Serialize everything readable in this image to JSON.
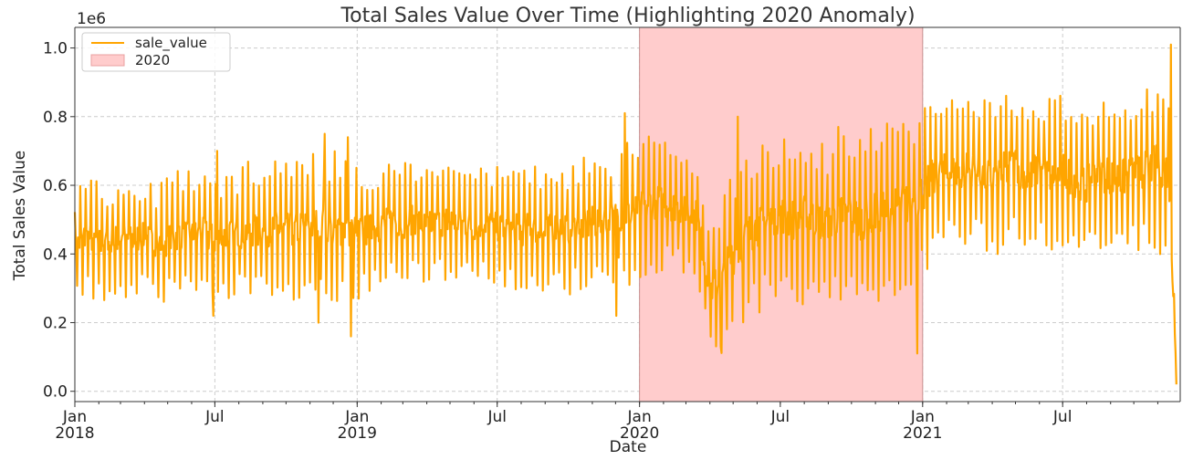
{
  "chart_data": {
    "type": "line",
    "title": "Total Sales Value Over Time (Highlighting 2020 Anomaly)",
    "xlabel": "Date",
    "ylabel": "Total Sales Value",
    "y_offset_text": "1e6",
    "ylim": [
      -0.03,
      1.06
    ],
    "yticks": [
      "0.0",
      "0.2",
      "0.4",
      "0.6",
      "0.8",
      "1.0"
    ],
    "xticks": [
      {
        "date": "2018-01-01",
        "line1": "Jan",
        "line2": "2018"
      },
      {
        "date": "2018-07-01",
        "line1": "Jul",
        "line2": ""
      },
      {
        "date": "2019-01-01",
        "line1": "Jan",
        "line2": "2019"
      },
      {
        "date": "2019-07-01",
        "line1": "Jul",
        "line2": ""
      },
      {
        "date": "2020-01-01",
        "line1": "Jan",
        "line2": "2020"
      },
      {
        "date": "2020-07-01",
        "line1": "Jul",
        "line2": ""
      },
      {
        "date": "2021-01-01",
        "line1": "Jan",
        "line2": "2021"
      },
      {
        "date": "2021-07-01",
        "line1": "Jul",
        "line2": ""
      }
    ],
    "xlim": [
      "2018-01-01",
      "2021-11-30"
    ],
    "grid": true,
    "legend_placement": "upper-left",
    "series": [
      {
        "name": "sale_value",
        "color": "#ffa500",
        "x": [
          "2018-01-01",
          "2018-01-15",
          "2018-02-01",
          "2018-02-15",
          "2018-03-01",
          "2018-03-15",
          "2018-04-01",
          "2018-04-15",
          "2018-05-01",
          "2018-05-15",
          "2018-06-01",
          "2018-06-15",
          "2018-07-01",
          "2018-07-15",
          "2018-08-01",
          "2018-08-15",
          "2018-09-01",
          "2018-09-15",
          "2018-10-01",
          "2018-10-15",
          "2018-11-01",
          "2018-11-15",
          "2018-12-01",
          "2018-12-15",
          "2019-01-01",
          "2019-01-15",
          "2019-02-01",
          "2019-02-15",
          "2019-03-01",
          "2019-03-15",
          "2019-04-01",
          "2019-04-15",
          "2019-05-01",
          "2019-05-15",
          "2019-06-01",
          "2019-06-15",
          "2019-07-01",
          "2019-07-15",
          "2019-08-01",
          "2019-08-15",
          "2019-09-01",
          "2019-09-15",
          "2019-10-01",
          "2019-10-15",
          "2019-11-01",
          "2019-11-15",
          "2019-12-01",
          "2019-12-15",
          "2020-01-01",
          "2020-01-15",
          "2020-02-01",
          "2020-02-15",
          "2020-03-01",
          "2020-03-15",
          "2020-04-01",
          "2020-04-15",
          "2020-05-01",
          "2020-05-15",
          "2020-06-01",
          "2020-06-15",
          "2020-07-01",
          "2020-07-15",
          "2020-08-01",
          "2020-08-15",
          "2020-09-01",
          "2020-09-15",
          "2020-10-01",
          "2020-10-15",
          "2020-11-01",
          "2020-11-15",
          "2020-12-01",
          "2020-12-15",
          "2021-01-01",
          "2021-01-15",
          "2021-02-01",
          "2021-02-15",
          "2021-03-01",
          "2021-03-15",
          "2021-04-01",
          "2021-04-15",
          "2021-05-01",
          "2021-05-15",
          "2021-06-01",
          "2021-06-15",
          "2021-07-01",
          "2021-07-15",
          "2021-08-01",
          "2021-08-15",
          "2021-09-01",
          "2021-09-15",
          "2021-10-01",
          "2021-10-15",
          "2021-11-01",
          "2021-11-15",
          "2021-11-25"
        ],
        "y": [
          0.42,
          0.45,
          0.44,
          0.43,
          0.45,
          0.44,
          0.45,
          0.43,
          0.44,
          0.46,
          0.45,
          0.46,
          0.44,
          0.45,
          0.46,
          0.47,
          0.46,
          0.48,
          0.47,
          0.47,
          0.48,
          0.49,
          0.47,
          0.48,
          0.46,
          0.47,
          0.48,
          0.5,
          0.49,
          0.5,
          0.48,
          0.49,
          0.5,
          0.49,
          0.48,
          0.49,
          0.48,
          0.47,
          0.47,
          0.48,
          0.46,
          0.48,
          0.47,
          0.48,
          0.49,
          0.5,
          0.51,
          0.52,
          0.53,
          0.55,
          0.55,
          0.54,
          0.53,
          0.51,
          0.3,
          0.32,
          0.4,
          0.44,
          0.48,
          0.5,
          0.52,
          0.5,
          0.51,
          0.5,
          0.49,
          0.52,
          0.51,
          0.5,
          0.52,
          0.53,
          0.54,
          0.55,
          0.58,
          0.62,
          0.64,
          0.63,
          0.65,
          0.63,
          0.62,
          0.64,
          0.66,
          0.62,
          0.65,
          0.63,
          0.64,
          0.62,
          0.6,
          0.64,
          0.63,
          0.62,
          0.63,
          0.64,
          0.66,
          0.65,
          0.05
        ],
        "amplitude": [
          0.12,
          0.13,
          0.12,
          0.12,
          0.13,
          0.12,
          0.12,
          0.12,
          0.13,
          0.14,
          0.13,
          0.14,
          0.13,
          0.14,
          0.13,
          0.14,
          0.14,
          0.14,
          0.14,
          0.15,
          0.15,
          0.15,
          0.16,
          0.16,
          0.14,
          0.13,
          0.13,
          0.13,
          0.13,
          0.12,
          0.12,
          0.12,
          0.13,
          0.12,
          0.12,
          0.12,
          0.12,
          0.13,
          0.14,
          0.13,
          0.14,
          0.13,
          0.13,
          0.14,
          0.14,
          0.13,
          0.14,
          0.16,
          0.14,
          0.15,
          0.14,
          0.13,
          0.13,
          0.14,
          0.12,
          0.16,
          0.18,
          0.18,
          0.18,
          0.17,
          0.16,
          0.17,
          0.18,
          0.17,
          0.16,
          0.18,
          0.18,
          0.17,
          0.18,
          0.18,
          0.18,
          0.19,
          0.17,
          0.17,
          0.16,
          0.16,
          0.16,
          0.15,
          0.16,
          0.16,
          0.17,
          0.16,
          0.16,
          0.16,
          0.16,
          0.15,
          0.15,
          0.16,
          0.16,
          0.16,
          0.16,
          0.17,
          0.18,
          0.18,
          0.0
        ],
        "spikes": [
          {
            "x": "2018-06-29",
            "y": 0.22
          },
          {
            "x": "2018-07-04",
            "y": 0.7
          },
          {
            "x": "2018-11-20",
            "y": 0.75
          },
          {
            "x": "2018-11-12",
            "y": 0.2
          },
          {
            "x": "2018-12-20",
            "y": 0.74
          },
          {
            "x": "2018-12-24",
            "y": 0.16
          },
          {
            "x": "2019-01-03",
            "y": 0.27
          },
          {
            "x": "2019-12-13",
            "y": 0.81
          },
          {
            "x": "2019-12-02",
            "y": 0.22
          },
          {
            "x": "2020-04-15",
            "y": 0.13
          },
          {
            "x": "2020-05-07",
            "y": 0.8
          },
          {
            "x": "2020-12-25",
            "y": 0.11
          },
          {
            "x": "2021-11-18",
            "y": 1.01
          },
          {
            "x": "2021-11-29",
            "y": 0.02
          }
        ]
      }
    ],
    "highlight": {
      "label": "2020",
      "from": "2020-01-01",
      "to": "2021-01-01",
      "color": "#ffcccc"
    }
  }
}
